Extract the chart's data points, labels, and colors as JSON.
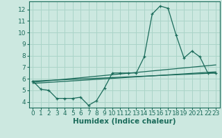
{
  "xlabel": "Humidex (Indice chaleur)",
  "background_color": "#cce8e0",
  "grid_color": "#aad4c8",
  "line_color": "#1a6b5a",
  "x_values": [
    0,
    1,
    2,
    3,
    4,
    5,
    6,
    7,
    8,
    9,
    10,
    11,
    12,
    13,
    14,
    15,
    16,
    17,
    18,
    19,
    20,
    21,
    22,
    23
  ],
  "series1": [
    5.8,
    5.1,
    5.0,
    4.3,
    4.3,
    4.3,
    4.4,
    3.7,
    4.1,
    5.2,
    6.5,
    6.5,
    6.5,
    6.5,
    7.9,
    11.6,
    12.3,
    12.1,
    9.8,
    7.8,
    8.4,
    7.9,
    6.5,
    6.5
  ],
  "series2": [
    [
      0,
      23
    ],
    [
      5.8,
      6.5
    ]
  ],
  "series3": [
    [
      0,
      23
    ],
    [
      5.6,
      6.6
    ]
  ],
  "series4": [
    [
      0,
      23
    ],
    [
      5.7,
      7.2
    ]
  ],
  "xlim": [
    -0.5,
    23.5
  ],
  "ylim": [
    3.5,
    12.7
  ],
  "yticks": [
    4,
    5,
    6,
    7,
    8,
    9,
    10,
    11,
    12
  ],
  "xticks": [
    0,
    1,
    2,
    3,
    4,
    5,
    6,
    7,
    8,
    9,
    10,
    11,
    12,
    13,
    14,
    15,
    16,
    17,
    18,
    19,
    20,
    21,
    22,
    23
  ],
  "tick_fontsize": 6.5,
  "xlabel_fontsize": 7.5,
  "xlabel_fontweight": "bold"
}
